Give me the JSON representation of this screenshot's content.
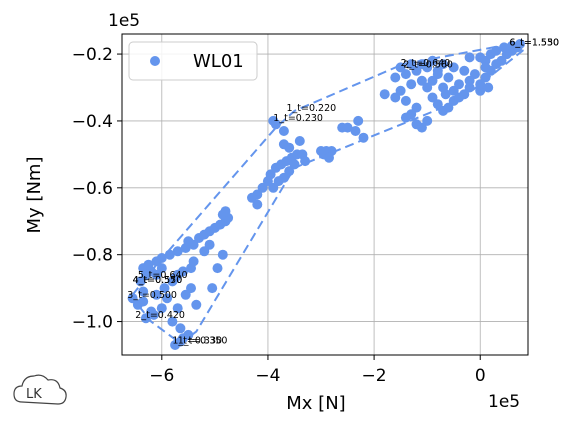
{
  "chart_data": {
    "type": "scatter",
    "title": "",
    "xlabel": "Mx [N]",
    "ylabel": "My [Nm]",
    "x_offset_label": "1e5",
    "y_offset_label": "1e5",
    "xlim": [
      -6.75,
      0.9
    ],
    "ylim": [
      -1.1,
      -0.14
    ],
    "x_ticks": [
      -6,
      -4,
      -2,
      0
    ],
    "x_tick_labels": [
      "−6",
      "−4",
      "−2",
      "0"
    ],
    "y_ticks": [
      -1.0,
      -0.8,
      -0.6,
      -0.4,
      -0.2
    ],
    "y_tick_labels": [
      "−1.0",
      "−0.8",
      "−0.6",
      "−0.4",
      "−0.2"
    ],
    "grid": true,
    "legend_position": "top-left",
    "colors": {
      "series": "#6495ED",
      "hull": "#6495ED"
    },
    "series": [
      {
        "name": "WL01",
        "points": [
          [
            -6.55,
            -0.93
          ],
          [
            -6.45,
            -0.95
          ],
          [
            -6.35,
            -0.91
          ],
          [
            -6.4,
            -0.88
          ],
          [
            -6.3,
            -0.86
          ],
          [
            -6.2,
            -0.85
          ],
          [
            -6.35,
            -0.84
          ],
          [
            -6.25,
            -0.83
          ],
          [
            -6.1,
            -0.82
          ],
          [
            -6.0,
            -0.81
          ],
          [
            -5.85,
            -0.8
          ],
          [
            -5.7,
            -0.79
          ],
          [
            -5.55,
            -0.78
          ],
          [
            -5.4,
            -0.77
          ],
          [
            -5.5,
            -0.76
          ],
          [
            -5.3,
            -0.75
          ],
          [
            -5.2,
            -0.74
          ],
          [
            -5.1,
            -0.73
          ],
          [
            -5.0,
            -0.72
          ],
          [
            -4.9,
            -0.71
          ],
          [
            -4.8,
            -0.7
          ],
          [
            -4.75,
            -0.69
          ],
          [
            -4.85,
            -0.68
          ],
          [
            -4.8,
            -0.67
          ],
          [
            -6.2,
            -0.97
          ],
          [
            -6.3,
            -0.99
          ],
          [
            -6.15,
            -0.98
          ],
          [
            -6.0,
            -0.96
          ],
          [
            -5.9,
            -0.93
          ],
          [
            -6.1,
            -0.92
          ],
          [
            -5.95,
            -0.9
          ],
          [
            -5.8,
            -0.88
          ],
          [
            -5.7,
            -0.86
          ],
          [
            -5.6,
            -0.85
          ],
          [
            -5.45,
            -0.84
          ],
          [
            -5.4,
            -0.82
          ],
          [
            -5.2,
            -0.79
          ],
          [
            -5.1,
            -0.77
          ],
          [
            -5.45,
            -0.9
          ],
          [
            -5.55,
            -0.92
          ],
          [
            -5.7,
            -0.96
          ],
          [
            -5.8,
            -1.0
          ],
          [
            -5.65,
            -1.02
          ],
          [
            -5.5,
            -1.04
          ],
          [
            -5.65,
            -1.06
          ],
          [
            -5.75,
            -1.07
          ],
          [
            -5.6,
            -1.05
          ],
          [
            -5.35,
            -0.95
          ],
          [
            -5.05,
            -0.9
          ],
          [
            -4.95,
            -0.84
          ],
          [
            -4.85,
            -0.8
          ],
          [
            -6.0,
            -0.84
          ],
          [
            -6.1,
            -0.86
          ],
          [
            -5.75,
            -0.87
          ],
          [
            -6.35,
            -0.94
          ],
          [
            -4.2,
            -0.62
          ],
          [
            -4.1,
            -0.6
          ],
          [
            -4.0,
            -0.58
          ],
          [
            -4.2,
            -0.65
          ],
          [
            -4.3,
            -0.63
          ],
          [
            -3.95,
            -0.56
          ],
          [
            -3.85,
            -0.54
          ],
          [
            -3.75,
            -0.53
          ],
          [
            -3.65,
            -0.52
          ],
          [
            -3.55,
            -0.51
          ],
          [
            -3.45,
            -0.5
          ],
          [
            -3.35,
            -0.5
          ],
          [
            -3.3,
            -0.52
          ],
          [
            -3.5,
            -0.53
          ],
          [
            -3.6,
            -0.55
          ],
          [
            -3.7,
            -0.57
          ],
          [
            -3.8,
            -0.58
          ],
          [
            -3.9,
            -0.6
          ],
          [
            -3.7,
            -0.43
          ],
          [
            -3.85,
            -0.41
          ],
          [
            -3.9,
            -0.4
          ],
          [
            -3.7,
            -0.47
          ],
          [
            -3.6,
            -0.48
          ],
          [
            -3.4,
            -0.46
          ],
          [
            -3.0,
            -0.49
          ],
          [
            -2.9,
            -0.49
          ],
          [
            -2.8,
            -0.49
          ],
          [
            -2.95,
            -0.5
          ],
          [
            -2.85,
            -0.51
          ],
          [
            -2.6,
            -0.42
          ],
          [
            -2.5,
            -0.42
          ],
          [
            -2.35,
            -0.43
          ],
          [
            -2.2,
            -0.45
          ],
          [
            -2.3,
            -0.4
          ],
          [
            -1.8,
            -0.32
          ],
          [
            -1.6,
            -0.33
          ],
          [
            -1.4,
            -0.34
          ],
          [
            -1.5,
            -0.31
          ],
          [
            -1.3,
            -0.29
          ],
          [
            -1.1,
            -0.28
          ],
          [
            -1.0,
            -0.3
          ],
          [
            -0.9,
            -0.33
          ],
          [
            -0.8,
            -0.35
          ],
          [
            -0.7,
            -0.37
          ],
          [
            -0.6,
            -0.36
          ],
          [
            -0.5,
            -0.34
          ],
          [
            -1.2,
            -0.36
          ],
          [
            -1.3,
            -0.38
          ],
          [
            -1.4,
            -0.39
          ],
          [
            -1.2,
            -0.41
          ],
          [
            -1.1,
            -0.42
          ],
          [
            -1.0,
            -0.4
          ],
          [
            -1.6,
            -0.27
          ],
          [
            -1.4,
            -0.26
          ],
          [
            -1.2,
            -0.25
          ],
          [
            -1.0,
            -0.24
          ],
          [
            -0.8,
            -0.25
          ],
          [
            -0.6,
            -0.27
          ],
          [
            -0.4,
            -0.29
          ],
          [
            -0.2,
            -0.3
          ],
          [
            0.0,
            -0.31
          ],
          [
            -0.3,
            -0.32
          ],
          [
            -0.5,
            -0.31
          ],
          [
            -0.7,
            -0.3
          ],
          [
            -0.9,
            -0.28
          ],
          [
            -1.5,
            -0.24
          ],
          [
            -1.3,
            -0.23
          ],
          [
            -1.1,
            -0.23
          ],
          [
            -0.9,
            -0.22
          ],
          [
            -0.7,
            -0.23
          ],
          [
            -0.5,
            -0.24
          ],
          [
            -0.3,
            -0.25
          ],
          [
            -0.1,
            -0.26
          ],
          [
            0.1,
            -0.27
          ],
          [
            0.2,
            -0.25
          ],
          [
            0.3,
            -0.23
          ],
          [
            0.4,
            -0.22
          ],
          [
            0.5,
            -0.2
          ],
          [
            0.6,
            -0.19
          ],
          [
            0.7,
            -0.18
          ],
          [
            0.1,
            -0.22
          ],
          [
            0.0,
            -0.21
          ],
          [
            -0.2,
            -0.21
          ],
          [
            0.2,
            -0.2
          ],
          [
            0.3,
            -0.19
          ],
          [
            0.45,
            -0.18
          ],
          [
            0.6,
            -0.175
          ],
          [
            0.75,
            -0.17
          ],
          [
            0.1,
            -0.24
          ],
          [
            -0.2,
            -0.28
          ],
          [
            0.0,
            -0.29
          ],
          [
            0.15,
            -0.3
          ],
          [
            -0.4,
            -0.33
          ],
          [
            -0.65,
            -0.32
          ],
          [
            -0.8,
            -0.26
          ]
        ]
      }
    ],
    "hull": [
      [
        -6.55,
        -0.92
      ],
      [
        -6.1,
        -0.83
      ],
      [
        -3.85,
        -0.42
      ],
      [
        -3.5,
        -0.37
      ],
      [
        -1.45,
        -0.23
      ],
      [
        0.75,
        -0.165
      ],
      [
        0.8,
        -0.19
      ],
      [
        -0.4,
        -0.34
      ],
      [
        -3.5,
        -0.54
      ],
      [
        -5.35,
        -1.03
      ],
      [
        -5.65,
        -1.065
      ],
      [
        -6.2,
        -1.0
      ],
      [
        -6.5,
        -0.94
      ]
    ],
    "annotations": [
      {
        "text": "6_t=1.550",
        "x": 0.55,
        "y": -0.175
      },
      {
        "text": "6_t=1.530",
        "x": 0.55,
        "y": -0.175
      },
      {
        "text": "2_t=0.640",
        "x": -1.5,
        "y": -0.235
      },
      {
        "text": "2_t=0.560",
        "x": -1.45,
        "y": -0.24
      },
      {
        "text": "1_t=0.220",
        "x": -3.65,
        "y": -0.37
      },
      {
        "text": "1_t=0.230",
        "x": -3.9,
        "y": -0.4
      },
      {
        "text": "5_t=0.640",
        "x": -6.45,
        "y": -0.87
      },
      {
        "text": "4_t=0.570",
        "x": -6.55,
        "y": -0.885
      },
      {
        "text": "4_t=0.550",
        "x": -6.55,
        "y": -0.885
      },
      {
        "text": "3_t=0.500",
        "x": -6.65,
        "y": -0.93
      },
      {
        "text": "2_t=0.420",
        "x": -6.5,
        "y": -0.99
      },
      {
        "text": "1_t=0.330",
        "x": -5.8,
        "y": -1.065
      },
      {
        "text": "1_t=0.350",
        "x": -5.7,
        "y": -1.065
      }
    ]
  },
  "logo": {
    "text": "LK"
  }
}
